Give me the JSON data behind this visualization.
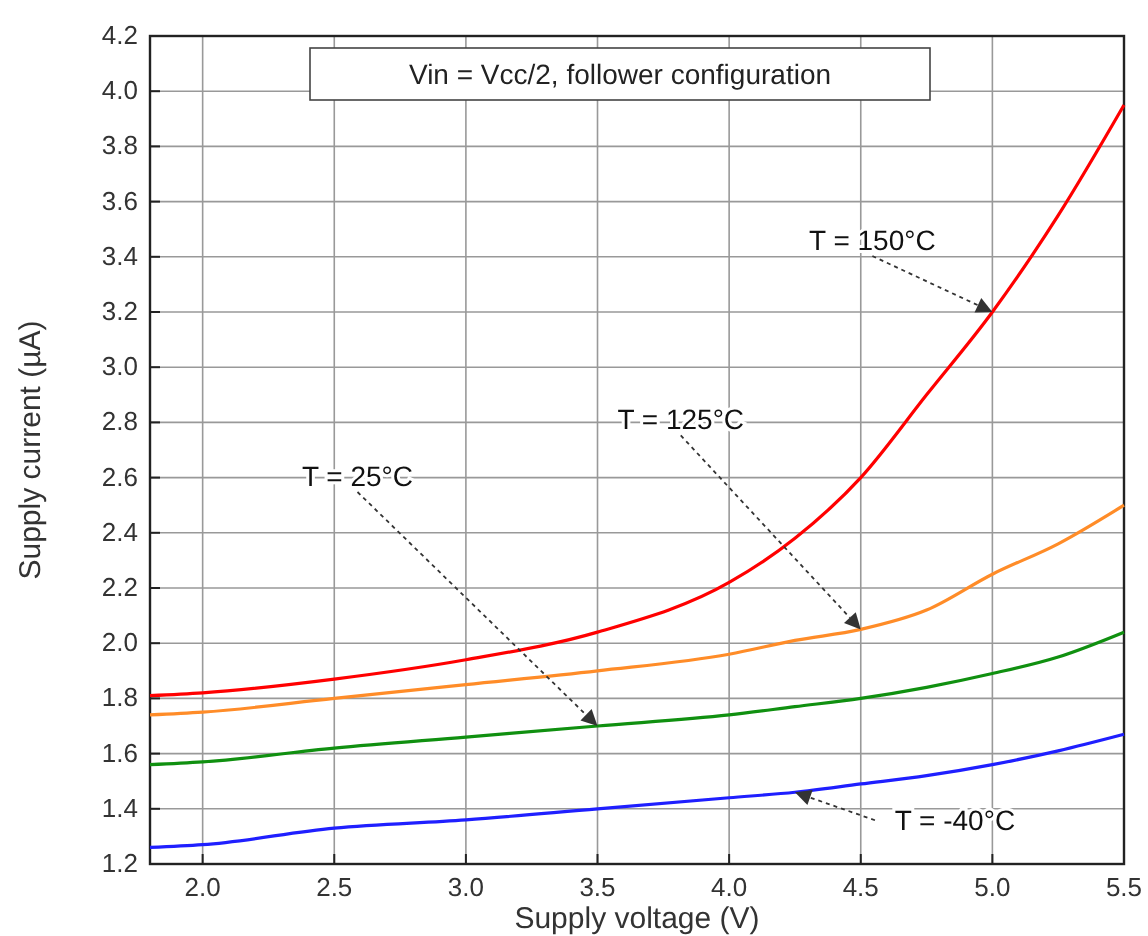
{
  "chart_data": {
    "type": "line",
    "title": "Vin = Vcc/2, follower configuration",
    "xlabel": "Supply voltage (V)",
    "ylabel": "Supply current (µA)",
    "x": [
      1.8,
      2.0,
      2.5,
      3.0,
      3.5,
      4.0,
      4.25,
      4.5,
      4.75,
      5.0,
      5.25,
      5.5
    ],
    "series": [
      {
        "color": "#ff0000",
        "values": [
          1.81,
          1.82,
          1.87,
          1.94,
          2.04,
          2.22,
          2.38,
          2.6,
          2.9,
          3.2,
          3.55,
          3.95
        ]
      },
      {
        "color": "#ff8c28",
        "values": [
          1.74,
          1.75,
          1.8,
          1.85,
          1.9,
          1.96,
          2.01,
          2.05,
          2.12,
          2.25,
          2.36,
          2.5
        ]
      },
      {
        "color": "#109010",
        "values": [
          1.56,
          1.57,
          1.62,
          1.66,
          1.7,
          1.74,
          1.77,
          1.8,
          1.84,
          1.89,
          1.95,
          2.04
        ]
      },
      {
        "color": "#1f1fff",
        "values": [
          1.26,
          1.27,
          1.33,
          1.36,
          1.4,
          1.44,
          1.46,
          1.49,
          1.52,
          1.56,
          1.61,
          1.67
        ]
      }
    ],
    "annotations": [
      {
        "text": "T = 150°C",
        "x": 5.0,
        "y": 3.2
      },
      {
        "text": "T = 125°C",
        "x": 4.5,
        "y": 2.05
      },
      {
        "text": "T = 25°C",
        "x": 3.5,
        "y": 1.7
      },
      {
        "text": "T = -40°C",
        "x": 4.25,
        "y": 1.46
      }
    ],
    "xlim": [
      1.8,
      5.5
    ],
    "xticks": [
      {
        "value": 2,
        "label": "2.0"
      },
      2.5,
      {
        "value": 3,
        "label": "3.0"
      },
      3.5,
      {
        "value": 4,
        "label": "4.0"
      },
      4.5,
      {
        "value": 5,
        "label": "5.0"
      },
      5.5
    ],
    "ylim": [
      1.2,
      4.2
    ],
    "yticks": [
      1.2,
      1.4,
      1.6,
      1.8,
      {
        "value": 2,
        "label": "2.0"
      },
      2.2,
      2.4,
      2.6,
      2.8,
      {
        "value": 3,
        "label": "3.0"
      },
      3.2,
      3.4,
      3.6,
      3.8,
      {
        "value": 4,
        "label": "4.0"
      },
      4.2
    ],
    "grid": true,
    "marker": "none",
    "line_style": "solid"
  }
}
